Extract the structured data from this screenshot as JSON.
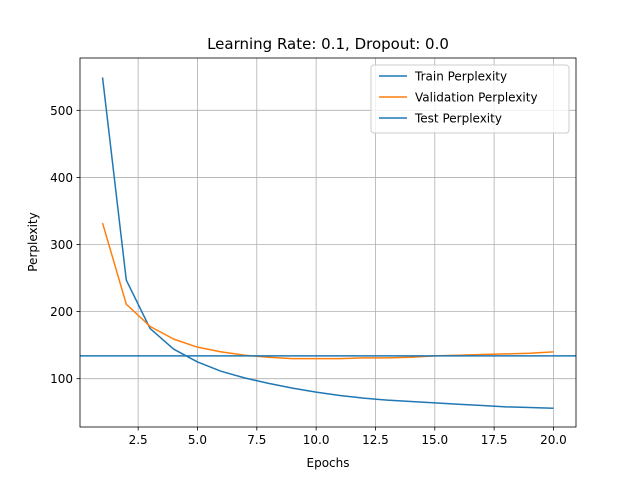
{
  "chart_data": {
    "type": "line",
    "title": "Learning Rate: 0.1, Dropout: 0.0",
    "xlabel": "Epochs",
    "ylabel": "Perplexity",
    "xlim": [
      0.05,
      20.95
    ],
    "ylim": [
      28,
      578
    ],
    "xticks": [
      2.5,
      5.0,
      7.5,
      10.0,
      12.5,
      15.0,
      17.5,
      20.0
    ],
    "xtick_labels": [
      "2.5",
      "5.0",
      "7.5",
      "10.0",
      "12.5",
      "15.0",
      "17.5",
      "20.0"
    ],
    "yticks": [
      100,
      200,
      300,
      400,
      500
    ],
    "ytick_labels": [
      "100",
      "200",
      "300",
      "400",
      "500"
    ],
    "grid": true,
    "legend_position": "top-right",
    "x": [
      1,
      2,
      3,
      4,
      5,
      6,
      7,
      8,
      9,
      10,
      11,
      12,
      13,
      14,
      15,
      16,
      17,
      18,
      19,
      20
    ],
    "series": [
      {
        "name": "Train Perplexity",
        "kind": "line",
        "color": "#1f77b4",
        "values": [
          549,
          247,
          175,
          144,
          125,
          111,
          101,
          93,
          86,
          80,
          75,
          71,
          68,
          66,
          64,
          62,
          60,
          58,
          57,
          56
        ]
      },
      {
        "name": "Validation Perplexity",
        "kind": "line",
        "color": "#ff7f0e",
        "values": [
          332,
          211,
          178,
          159,
          147,
          140,
          135,
          132,
          130,
          130,
          130,
          131,
          131,
          132,
          134,
          135,
          136,
          137,
          138,
          140
        ]
      },
      {
        "name": "Test Perplexity",
        "kind": "hline",
        "color": "#1f77b4",
        "value": 134
      }
    ]
  }
}
